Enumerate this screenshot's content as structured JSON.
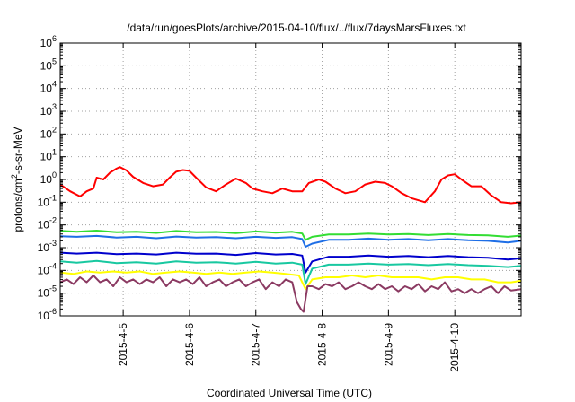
{
  "chart_data": {
    "type": "line",
    "title": "/data/run/goesPlots/archive/2015-04-10/flux/../flux/7daysMarsFluxes.txt",
    "xlabel": "Coordinated Universal Time (UTC)",
    "ylabel_base": "protons/cm",
    "ylabel_sup": "2",
    "ylabel_rest": "-s-sr-MeV",
    "yscale": "log",
    "ylim": [
      1e-06,
      1000000.0
    ],
    "xlim": [
      4.05,
      11.0
    ],
    "grid": true,
    "y_ticks": [
      {
        "value": 1e-06,
        "base": "10",
        "exp": "-6"
      },
      {
        "value": 1e-05,
        "base": "10",
        "exp": "-5"
      },
      {
        "value": 0.0001,
        "base": "10",
        "exp": "-4"
      },
      {
        "value": 0.001,
        "base": "10",
        "exp": "-3"
      },
      {
        "value": 0.01,
        "base": "10",
        "exp": "-2"
      },
      {
        "value": 0.1,
        "base": "10",
        "exp": "-1"
      },
      {
        "value": 1.0,
        "base": "10",
        "exp": "0"
      },
      {
        "value": 10.0,
        "base": "10",
        "exp": "1"
      },
      {
        "value": 100.0,
        "base": "10",
        "exp": "2"
      },
      {
        "value": 1000.0,
        "base": "10",
        "exp": "3"
      },
      {
        "value": 10000.0,
        "base": "10",
        "exp": "4"
      },
      {
        "value": 100000.0,
        "base": "10",
        "exp": "5"
      },
      {
        "value": 1000000.0,
        "base": "10",
        "exp": "6"
      }
    ],
    "x_ticks": [
      {
        "value": 5,
        "label": "2015-4-5"
      },
      {
        "value": 6,
        "label": "2015-4-6"
      },
      {
        "value": 7,
        "label": "2015-4-7"
      },
      {
        "value": 8,
        "label": "2015-4-8"
      },
      {
        "value": 9,
        "label": "2015-4-9"
      },
      {
        "value": 10,
        "label": "2015-4-10"
      }
    ],
    "series": [
      {
        "color": "#ff0000",
        "x": [
          4.05,
          4.2,
          4.35,
          4.45,
          4.55,
          4.6,
          4.7,
          4.8,
          4.9,
          4.95,
          5.05,
          5.15,
          5.3,
          5.45,
          5.6,
          5.7,
          5.8,
          5.9,
          6.0,
          6.1,
          6.25,
          6.4,
          6.55,
          6.7,
          6.85,
          6.95,
          7.1,
          7.25,
          7.4,
          7.55,
          7.7,
          7.8,
          7.95,
          8.05,
          8.2,
          8.35,
          8.5,
          8.65,
          8.8,
          8.95,
          9.05,
          9.2,
          9.35,
          9.55,
          9.7,
          9.8,
          9.9,
          10.0,
          10.1,
          10.25,
          10.4,
          10.55,
          10.7,
          10.85,
          11.0
        ],
        "y": [
          0.6,
          0.3,
          0.18,
          0.3,
          0.4,
          1.2,
          1.0,
          2.0,
          3.0,
          3.5,
          2.5,
          1.3,
          0.7,
          0.5,
          0.6,
          1.2,
          2.2,
          2.6,
          2.4,
          1.2,
          0.45,
          0.3,
          0.6,
          1.1,
          0.7,
          0.4,
          0.3,
          0.25,
          0.4,
          0.3,
          0.3,
          0.7,
          1.0,
          0.8,
          0.4,
          0.25,
          0.3,
          0.6,
          0.8,
          0.7,
          0.5,
          0.25,
          0.15,
          0.1,
          0.3,
          1.0,
          1.5,
          1.7,
          1.0,
          0.5,
          0.5,
          0.2,
          0.1,
          0.09,
          0.1
        ]
      },
      {
        "color": "#33dd33",
        "x": [
          4.05,
          4.3,
          4.6,
          4.9,
          5.2,
          5.5,
          5.8,
          6.1,
          6.4,
          6.7,
          7.0,
          7.3,
          7.55,
          7.7,
          7.75,
          7.85,
          8.1,
          8.4,
          8.7,
          9.0,
          9.3,
          9.6,
          9.9,
          10.2,
          10.5,
          10.8,
          11.0
        ],
        "y": [
          0.0055,
          0.005,
          0.0056,
          0.0048,
          0.005,
          0.0045,
          0.0054,
          0.0048,
          0.0049,
          0.0044,
          0.0052,
          0.0046,
          0.005,
          0.0042,
          0.0022,
          0.003,
          0.0038,
          0.0038,
          0.0042,
          0.0038,
          0.004,
          0.0036,
          0.004,
          0.0036,
          0.0035,
          0.003,
          0.0034
        ]
      },
      {
        "color": "#1e6ee6",
        "x": [
          4.05,
          4.3,
          4.6,
          4.9,
          5.2,
          5.5,
          5.8,
          6.1,
          6.4,
          6.7,
          7.0,
          7.3,
          7.55,
          7.7,
          7.75,
          7.85,
          8.1,
          8.4,
          8.7,
          9.0,
          9.3,
          9.6,
          9.9,
          10.2,
          10.5,
          10.8,
          11.0
        ],
        "y": [
          0.0032,
          0.003,
          0.0033,
          0.0028,
          0.003,
          0.0026,
          0.0031,
          0.0028,
          0.0029,
          0.0026,
          0.003,
          0.0027,
          0.0029,
          0.0024,
          0.0011,
          0.0015,
          0.0022,
          0.0022,
          0.0025,
          0.0022,
          0.0024,
          0.0021,
          0.0024,
          0.0021,
          0.002,
          0.0017,
          0.002
        ]
      },
      {
        "color": "#0000cc",
        "x": [
          4.05,
          4.3,
          4.6,
          4.9,
          5.2,
          5.5,
          5.8,
          6.1,
          6.4,
          6.7,
          7.0,
          7.3,
          7.55,
          7.7,
          7.75,
          7.85,
          8.1,
          8.4,
          8.7,
          9.0,
          9.3,
          9.6,
          9.9,
          10.2,
          10.5,
          10.8,
          11.0
        ],
        "y": [
          0.0006,
          0.00055,
          0.0006,
          0.00052,
          0.00055,
          0.0005,
          0.0006,
          0.00054,
          0.00055,
          0.00048,
          0.00058,
          0.0005,
          0.00053,
          0.00045,
          8e-05,
          0.00025,
          0.0004,
          0.0004,
          0.00045,
          0.0004,
          0.00043,
          0.00038,
          0.00043,
          0.00038,
          0.00036,
          0.0003,
          0.00034
        ]
      },
      {
        "color": "#18c8a0",
        "x": [
          4.05,
          4.3,
          4.6,
          4.9,
          5.2,
          5.5,
          5.8,
          6.1,
          6.4,
          6.7,
          7.0,
          7.3,
          7.55,
          7.7,
          7.75,
          7.85,
          8.1,
          8.4,
          8.7,
          9.0,
          9.3,
          9.6,
          9.9,
          10.2,
          10.5,
          10.8,
          11.0
        ],
        "y": [
          0.00025,
          0.00022,
          0.00026,
          0.00021,
          0.00023,
          0.0002,
          0.00025,
          0.00022,
          0.00023,
          0.0002,
          0.00024,
          0.0002,
          0.00022,
          0.00018,
          2.5e-05,
          0.00012,
          0.00018,
          0.00018,
          0.0002,
          0.00018,
          0.00019,
          0.00017,
          0.00019,
          0.00017,
          0.00016,
          0.00014,
          0.00016
        ]
      },
      {
        "color": "#ffff00",
        "x": [
          4.05,
          4.25,
          4.45,
          4.65,
          4.85,
          5.05,
          5.25,
          5.45,
          5.65,
          5.85,
          6.05,
          6.25,
          6.45,
          6.65,
          6.85,
          7.05,
          7.25,
          7.45,
          7.65,
          7.75,
          7.85,
          8.05,
          8.25,
          8.45,
          8.65,
          8.85,
          9.05,
          9.25,
          9.45,
          9.65,
          9.85,
          10.05,
          10.25,
          10.45,
          10.65,
          10.85,
          11.0
        ],
        "y": [
          8e-05,
          7e-05,
          9e-05,
          8e-05,
          9e-05,
          8e-05,
          9e-05,
          7e-05,
          8e-05,
          9e-05,
          8e-05,
          7e-05,
          8e-05,
          7e-05,
          8e-05,
          9e-05,
          8e-05,
          7e-05,
          6e-05,
          1.5e-05,
          4e-05,
          5e-05,
          5e-05,
          6e-05,
          5e-05,
          6e-05,
          5e-05,
          5e-05,
          5e-05,
          4e-05,
          5e-05,
          5e-05,
          4e-05,
          4e-05,
          3e-05,
          3e-05,
          3.5e-05
        ]
      },
      {
        "color": "#8b3a62",
        "x": [
          4.05,
          4.15,
          4.25,
          4.35,
          4.45,
          4.55,
          4.65,
          4.75,
          4.85,
          4.95,
          5.05,
          5.15,
          5.25,
          5.35,
          5.45,
          5.55,
          5.65,
          5.75,
          5.85,
          5.95,
          6.05,
          6.15,
          6.25,
          6.35,
          6.45,
          6.55,
          6.65,
          6.75,
          6.85,
          6.95,
          7.05,
          7.15,
          7.25,
          7.35,
          7.45,
          7.55,
          7.62,
          7.68,
          7.72,
          7.78,
          7.85,
          7.95,
          8.05,
          8.15,
          8.25,
          8.35,
          8.45,
          8.55,
          8.65,
          8.75,
          8.85,
          8.95,
          9.05,
          9.15,
          9.25,
          9.35,
          9.45,
          9.55,
          9.65,
          9.75,
          9.85,
          9.95,
          10.05,
          10.15,
          10.25,
          10.35,
          10.45,
          10.55,
          10.65,
          10.75,
          10.85,
          11.0
        ],
        "y": [
          3e-05,
          4e-05,
          2.5e-05,
          5e-05,
          3e-05,
          6e-05,
          3e-05,
          4e-05,
          2e-05,
          5e-05,
          3e-05,
          4e-05,
          2.5e-05,
          4e-05,
          3e-05,
          5e-05,
          2e-05,
          4e-05,
          3e-05,
          4e-05,
          2.5e-05,
          5e-05,
          2e-05,
          3e-05,
          4e-05,
          2e-05,
          3e-05,
          4e-05,
          2e-05,
          3e-05,
          4e-05,
          1.5e-05,
          3e-05,
          2e-05,
          4e-05,
          3e-05,
          4e-06,
          2e-06,
          1.5e-06,
          2e-05,
          2e-05,
          1.5e-05,
          2.5e-05,
          2e-05,
          3e-05,
          1.5e-05,
          2e-05,
          3e-05,
          2e-05,
          1.5e-05,
          2.5e-05,
          1.5e-05,
          2e-05,
          1.2e-05,
          2e-05,
          1.5e-05,
          2.5e-05,
          1.2e-05,
          2e-05,
          1.5e-05,
          3e-05,
          1.2e-05,
          1.5e-05,
          1e-05,
          1.5e-05,
          1e-05,
          1.5e-05,
          2e-05,
          1e-05,
          2e-05,
          1.3e-05,
          1.5e-05
        ]
      }
    ]
  }
}
